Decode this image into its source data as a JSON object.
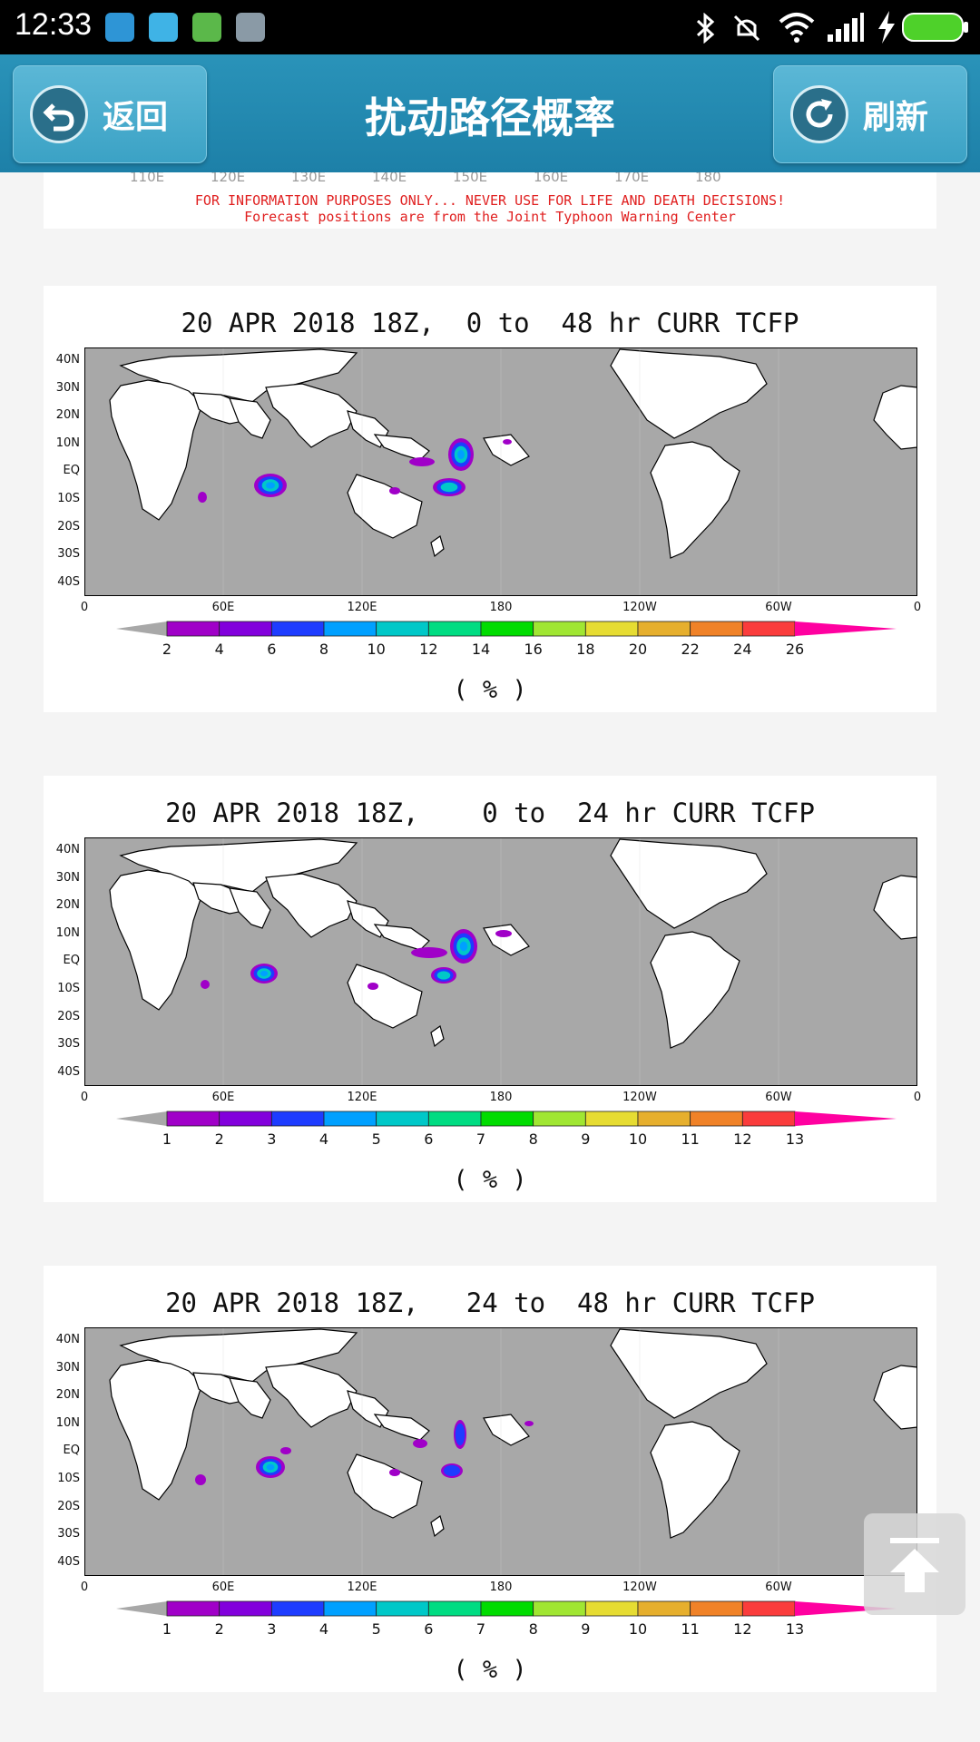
{
  "status_bar": {
    "time": "12:33"
  },
  "header": {
    "back_label": "返回",
    "title": "扰动路径概率",
    "refresh_label": "刷新"
  },
  "top_card": {
    "lon_labels": [
      "110E",
      "120E",
      "130E",
      "140E",
      "150E",
      "160E",
      "170E",
      "180"
    ],
    "disclaimer_line1": "FOR INFORMATION PURPOSES ONLY... NEVER USE FOR LIFE AND DEATH DECISIONS!",
    "disclaimer_line2": "Forecast positions are from the Joint Typhoon Warning Center"
  },
  "map_axes": {
    "lat_labels": [
      "40N",
      "30N",
      "20N",
      "10N",
      "EQ",
      "10S",
      "20S",
      "30S",
      "40S"
    ],
    "lon_labels": [
      "0",
      "60E",
      "120E",
      "180",
      "120W",
      "60W",
      "0"
    ]
  },
  "colorbar_colors": [
    "#a000c8",
    "#8200dc",
    "#1e3cff",
    "#00a0ff",
    "#00c8c8",
    "#00dc82",
    "#00dc00",
    "#a0e632",
    "#e6dc32",
    "#e6af2d",
    "#f08228",
    "#fa3c3c",
    "#ff00a0"
  ],
  "panels": [
    {
      "title": "20 APR 2018 18Z,  0 to  48 hr CURR TCFP",
      "colorbar_ticks": [
        "2",
        "4",
        "6",
        "8",
        "10",
        "12",
        "14",
        "16",
        "18",
        "20",
        "22",
        "24",
        "26"
      ],
      "unit": "( % )"
    },
    {
      "title": "20 APR 2018 18Z,    0 to  24 hr CURR TCFP",
      "colorbar_ticks": [
        "1",
        "2",
        "3",
        "4",
        "5",
        "6",
        "7",
        "8",
        "9",
        "10",
        "11",
        "12",
        "13"
      ],
      "unit": "( % )"
    },
    {
      "title": "20 APR 2018 18Z,   24 to  48 hr CURR TCFP",
      "colorbar_ticks": [
        "1",
        "2",
        "3",
        "4",
        "5",
        "6",
        "7",
        "8",
        "9",
        "10",
        "11",
        "12",
        "13"
      ],
      "unit": "( % )"
    }
  ]
}
